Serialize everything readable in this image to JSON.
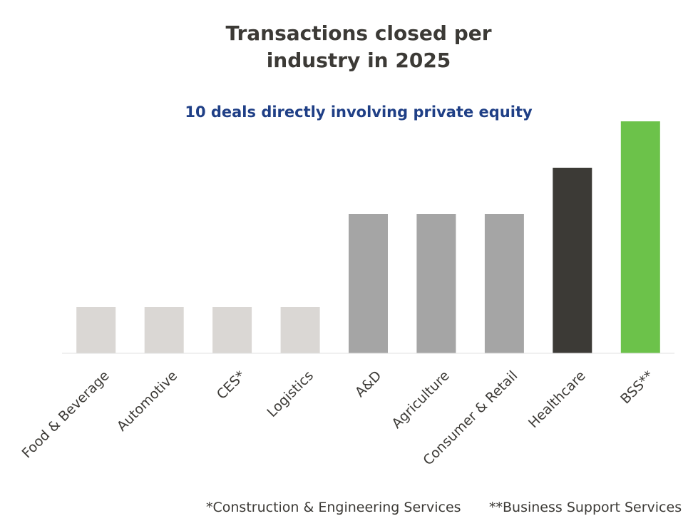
{
  "chart_data": {
    "type": "bar",
    "title": "Transactions closed per industry in 2025",
    "title_lines": [
      "Transactions closed per",
      "industry in 2025"
    ],
    "annotation": "10 deals directly involving private equity",
    "categories": [
      "Food & Beverage",
      "Automotive",
      "CES*",
      "Logistics",
      "A&D",
      "Agriculture",
      "Consumer & Retail",
      "Healthcare",
      "BSS**"
    ],
    "values": [
      1,
      1,
      1,
      1,
      3,
      3,
      3,
      4,
      5
    ],
    "colors": [
      "#dad7d4",
      "#dad7d4",
      "#dad7d4",
      "#dad7d4",
      "#a5a5a5",
      "#a5a5a5",
      "#a5a5a5",
      "#3c3a36",
      "#6cc24a"
    ],
    "xlabel": "",
    "ylabel": "",
    "ylim": [
      0,
      5
    ],
    "grid": false,
    "legend": "none",
    "footnotes": [
      "*Construction & Engineering Services",
      "**Business Support Services"
    ]
  }
}
